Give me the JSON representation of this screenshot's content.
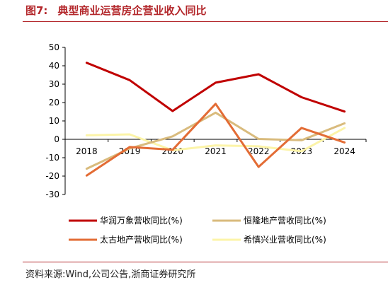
{
  "header": {
    "figure_number": "图7:",
    "title": "典型商业运营房企营业收入同比"
  },
  "footer": {
    "source": "资料来源:Wind,公司公告,浙商证券研究所"
  },
  "chart_data": {
    "type": "line",
    "x": [
      "2018",
      "2019",
      "2020",
      "2021",
      "2022",
      "2023",
      "2024"
    ],
    "ylim": [
      -30,
      50
    ],
    "yticks": [
      "50",
      "40",
      "30",
      "20",
      "10",
      "0",
      "-10",
      "-20",
      "-30"
    ],
    "grid": false,
    "legend_position": "bottom",
    "series": [
      {
        "name": "华润万象营收同比(%)",
        "color": "#c00000",
        "values": [
          41.6,
          32.2,
          15.4,
          30.8,
          35.4,
          22.9,
          15.1
        ]
      },
      {
        "name": "恒隆地产营收同比(%)",
        "color": "#d9bb7d",
        "values": [
          -16.0,
          -5.0,
          1.6,
          14.5,
          0.2,
          -0.5,
          8.7
        ]
      },
      {
        "name": "太古地产营收同比(%)",
        "color": "#e36c35",
        "values": [
          -19.7,
          -4.2,
          -5.7,
          19.3,
          -15.0,
          6.2,
          -1.7
        ]
      },
      {
        "name": "希慎兴业营收同比(%)",
        "color": "#fcf4a8",
        "values": [
          2.2,
          2.7,
          -6.0,
          -3.3,
          -3.8,
          -6.5,
          6.2
        ]
      }
    ]
  }
}
